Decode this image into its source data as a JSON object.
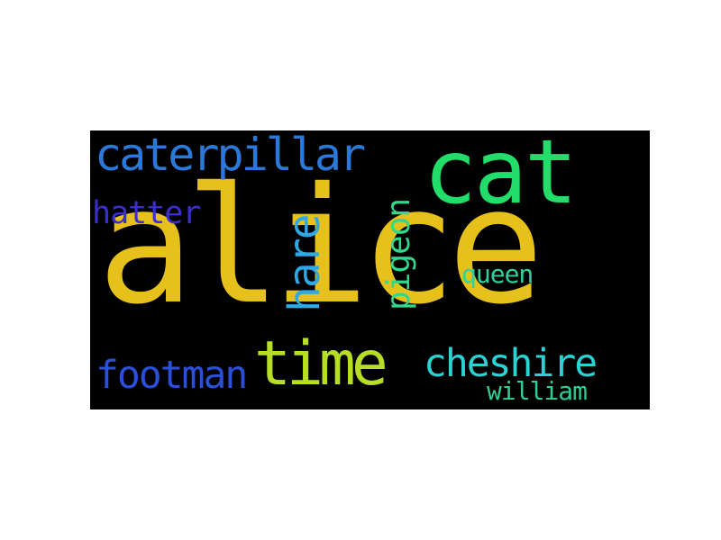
{
  "words": [
    {
      "key": "alice",
      "text": "alice",
      "color": "#e6c11c"
    },
    {
      "key": "cat",
      "text": "cat",
      "color": "#22dd6a"
    },
    {
      "key": "time",
      "text": "time",
      "color": "#b7de26"
    },
    {
      "key": "caterpillar",
      "text": "caterpillar",
      "color": "#2a78d8"
    },
    {
      "key": "cheshire",
      "text": "cheshire",
      "color": "#29d3d4"
    },
    {
      "key": "footman",
      "text": "footman",
      "color": "#2a4fd8"
    },
    {
      "key": "hare",
      "text": "hare",
      "color": "#2fa8e6"
    },
    {
      "key": "pigeon",
      "text": "pigeon",
      "color": "#33d68a"
    },
    {
      "key": "hatter",
      "text": "hatter",
      "color": "#3a2fce"
    },
    {
      "key": "queen",
      "text": "queen",
      "color": "#2fd1a0"
    },
    {
      "key": "william",
      "text": "william",
      "color": "#2ecf96"
    }
  ]
}
